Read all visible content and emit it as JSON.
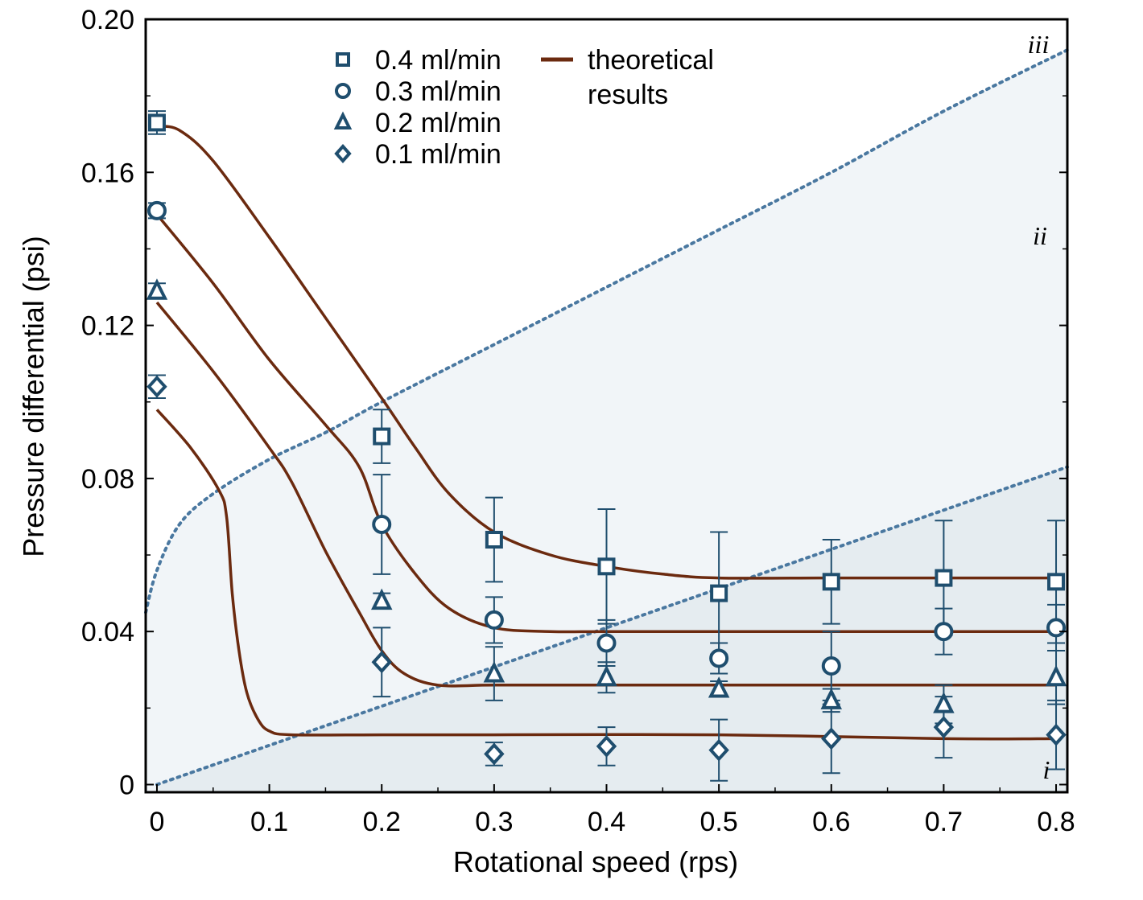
{
  "chart_data": {
    "type": "scatter",
    "xlabel": "Rotational speed (rps)",
    "ylabel": "Pressure differential (psi)",
    "xlim": [
      -0.01,
      0.81
    ],
    "ylim": [
      -0.002,
      0.2
    ],
    "x_ticks": [
      {
        "value": 0,
        "label": "0"
      },
      {
        "value": 0.1,
        "label": "0.1"
      },
      {
        "value": 0.2,
        "label": "0.2"
      },
      {
        "value": 0.3,
        "label": "0.3"
      },
      {
        "value": 0.4,
        "label": "0.4"
      },
      {
        "value": 0.5,
        "label": "0.5"
      },
      {
        "value": 0.6,
        "label": "0.6"
      },
      {
        "value": 0.7,
        "label": "0.7"
      },
      {
        "value": 0.8,
        "label": "0.8"
      }
    ],
    "y_ticks": [
      {
        "value": 0,
        "label": "0"
      },
      {
        "value": 0.04,
        "label": "0.04"
      },
      {
        "value": 0.08,
        "label": "0.08"
      },
      {
        "value": 0.12,
        "label": "0.12"
      },
      {
        "value": 0.16,
        "label": "0.16"
      },
      {
        "value": 0.2,
        "label": "0.20"
      }
    ],
    "grid": false,
    "legend_position": "top-center",
    "series": [
      {
        "name": "0.4 ml/min",
        "marker": "square",
        "color": "#1f4e6e",
        "points": [
          {
            "x": 0,
            "y": 0.173,
            "err": 0.003
          },
          {
            "x": 0.2,
            "y": 0.091,
            "err": 0.007
          },
          {
            "x": 0.3,
            "y": 0.064,
            "err": 0.011
          },
          {
            "x": 0.4,
            "y": 0.057,
            "err": 0.015
          },
          {
            "x": 0.5,
            "y": 0.05,
            "err": 0.016
          },
          {
            "x": 0.6,
            "y": 0.053,
            "err": 0.011
          },
          {
            "x": 0.7,
            "y": 0.054,
            "err": 0.015
          },
          {
            "x": 0.8,
            "y": 0.053,
            "err": 0.016
          }
        ]
      },
      {
        "name": "0.3 ml/min",
        "marker": "circle",
        "color": "#1f4e6e",
        "points": [
          {
            "x": 0,
            "y": 0.15,
            "err": 0.002
          },
          {
            "x": 0.2,
            "y": 0.068,
            "err": 0.013
          },
          {
            "x": 0.3,
            "y": 0.043,
            "err": 0.006
          },
          {
            "x": 0.4,
            "y": 0.037,
            "err": 0.006
          },
          {
            "x": 0.5,
            "y": 0.033,
            "err": 0.004
          },
          {
            "x": 0.6,
            "y": 0.031,
            "err": 0.009
          },
          {
            "x": 0.7,
            "y": 0.04,
            "err": 0.006
          },
          {
            "x": 0.8,
            "y": 0.041,
            "err": 0.006
          }
        ]
      },
      {
        "name": "0.2 ml/min",
        "marker": "triangle",
        "color": "#1f4e6e",
        "points": [
          {
            "x": 0,
            "y": 0.129,
            "err": 0.002
          },
          {
            "x": 0.2,
            "y": 0.048,
            "err": 0.002
          },
          {
            "x": 0.3,
            "y": 0.029,
            "err": 0.007
          },
          {
            "x": 0.4,
            "y": 0.028,
            "err": 0.004
          },
          {
            "x": 0.5,
            "y": 0.025,
            "err": 0.002
          },
          {
            "x": 0.6,
            "y": 0.022,
            "err": 0.003
          },
          {
            "x": 0.7,
            "y": 0.021,
            "err": 0.005
          },
          {
            "x": 0.8,
            "y": 0.028,
            "err": 0.007
          }
        ]
      },
      {
        "name": "0.1 ml/min",
        "marker": "diamond",
        "color": "#1f4e6e",
        "points": [
          {
            "x": 0,
            "y": 0.104,
            "err": 0.003
          },
          {
            "x": 0.2,
            "y": 0.032,
            "err": 0.009
          },
          {
            "x": 0.3,
            "y": 0.008,
            "err": 0.003
          },
          {
            "x": 0.4,
            "y": 0.01,
            "err": 0.005
          },
          {
            "x": 0.5,
            "y": 0.009,
            "err": 0.008
          },
          {
            "x": 0.6,
            "y": 0.012,
            "err": 0.009
          },
          {
            "x": 0.7,
            "y": 0.015,
            "err": 0.008
          },
          {
            "x": 0.8,
            "y": 0.013,
            "err": 0.009
          }
        ]
      }
    ],
    "theoretical": {
      "legend_lines": [
        "theoretical",
        "results"
      ],
      "color": "#6b2a0f",
      "curves": [
        [
          [
            0,
            0.172
          ],
          [
            0.02,
            0.171
          ],
          [
            0.05,
            0.163
          ],
          [
            0.1,
            0.143
          ],
          [
            0.15,
            0.122
          ],
          [
            0.2,
            0.101
          ],
          [
            0.23,
            0.088
          ],
          [
            0.26,
            0.076
          ],
          [
            0.3,
            0.066
          ],
          [
            0.35,
            0.06
          ],
          [
            0.4,
            0.057
          ],
          [
            0.45,
            0.055
          ],
          [
            0.5,
            0.054
          ],
          [
            0.6,
            0.054
          ],
          [
            0.7,
            0.054
          ],
          [
            0.8,
            0.054
          ]
        ],
        [
          [
            0,
            0.149
          ],
          [
            0.05,
            0.131
          ],
          [
            0.1,
            0.111
          ],
          [
            0.15,
            0.094
          ],
          [
            0.18,
            0.083
          ],
          [
            0.2,
            0.068
          ],
          [
            0.23,
            0.055
          ],
          [
            0.26,
            0.046
          ],
          [
            0.3,
            0.041
          ],
          [
            0.35,
            0.04
          ],
          [
            0.4,
            0.04
          ],
          [
            0.5,
            0.04
          ],
          [
            0.6,
            0.04
          ],
          [
            0.7,
            0.04
          ],
          [
            0.8,
            0.04
          ]
        ],
        [
          [
            0,
            0.126
          ],
          [
            0.05,
            0.108
          ],
          [
            0.1,
            0.088
          ],
          [
            0.12,
            0.079
          ],
          [
            0.15,
            0.061
          ],
          [
            0.18,
            0.045
          ],
          [
            0.2,
            0.035
          ],
          [
            0.22,
            0.029
          ],
          [
            0.25,
            0.026
          ],
          [
            0.3,
            0.026
          ],
          [
            0.4,
            0.026
          ],
          [
            0.5,
            0.026
          ],
          [
            0.6,
            0.026
          ],
          [
            0.7,
            0.026
          ],
          [
            0.8,
            0.026
          ]
        ],
        [
          [
            0,
            0.098
          ],
          [
            0.03,
            0.088
          ],
          [
            0.055,
            0.077
          ],
          [
            0.062,
            0.07
          ],
          [
            0.067,
            0.05
          ],
          [
            0.073,
            0.035
          ],
          [
            0.08,
            0.024
          ],
          [
            0.09,
            0.017
          ],
          [
            0.1,
            0.014
          ],
          [
            0.12,
            0.013
          ],
          [
            0.2,
            0.013
          ],
          [
            0.3,
            0.013
          ],
          [
            0.5,
            0.013
          ],
          [
            0.7,
            0.012
          ],
          [
            0.8,
            0.012
          ]
        ]
      ]
    },
    "boundaries": {
      "color": "#4a78a0",
      "upper": [
        [
          -0.01,
          0.045
        ],
        [
          0,
          0.056
        ],
        [
          0.02,
          0.068
        ],
        [
          0.05,
          0.076
        ],
        [
          0.1,
          0.085
        ],
        [
          0.15,
          0.092
        ],
        [
          0.2,
          0.1
        ],
        [
          0.3,
          0.115
        ],
        [
          0.4,
          0.13
        ],
        [
          0.5,
          0.145
        ],
        [
          0.6,
          0.16
        ],
        [
          0.7,
          0.176
        ],
        [
          0.81,
          0.192
        ]
      ],
      "lower": [
        [
          0,
          0
        ],
        [
          0.81,
          0.083
        ]
      ]
    },
    "regions": [
      {
        "label": "iii",
        "color": "#f1f5f8"
      },
      {
        "label": "ii",
        "color": "#f1f5f8"
      },
      {
        "label": "i",
        "color": "#e5ecf0"
      }
    ]
  }
}
